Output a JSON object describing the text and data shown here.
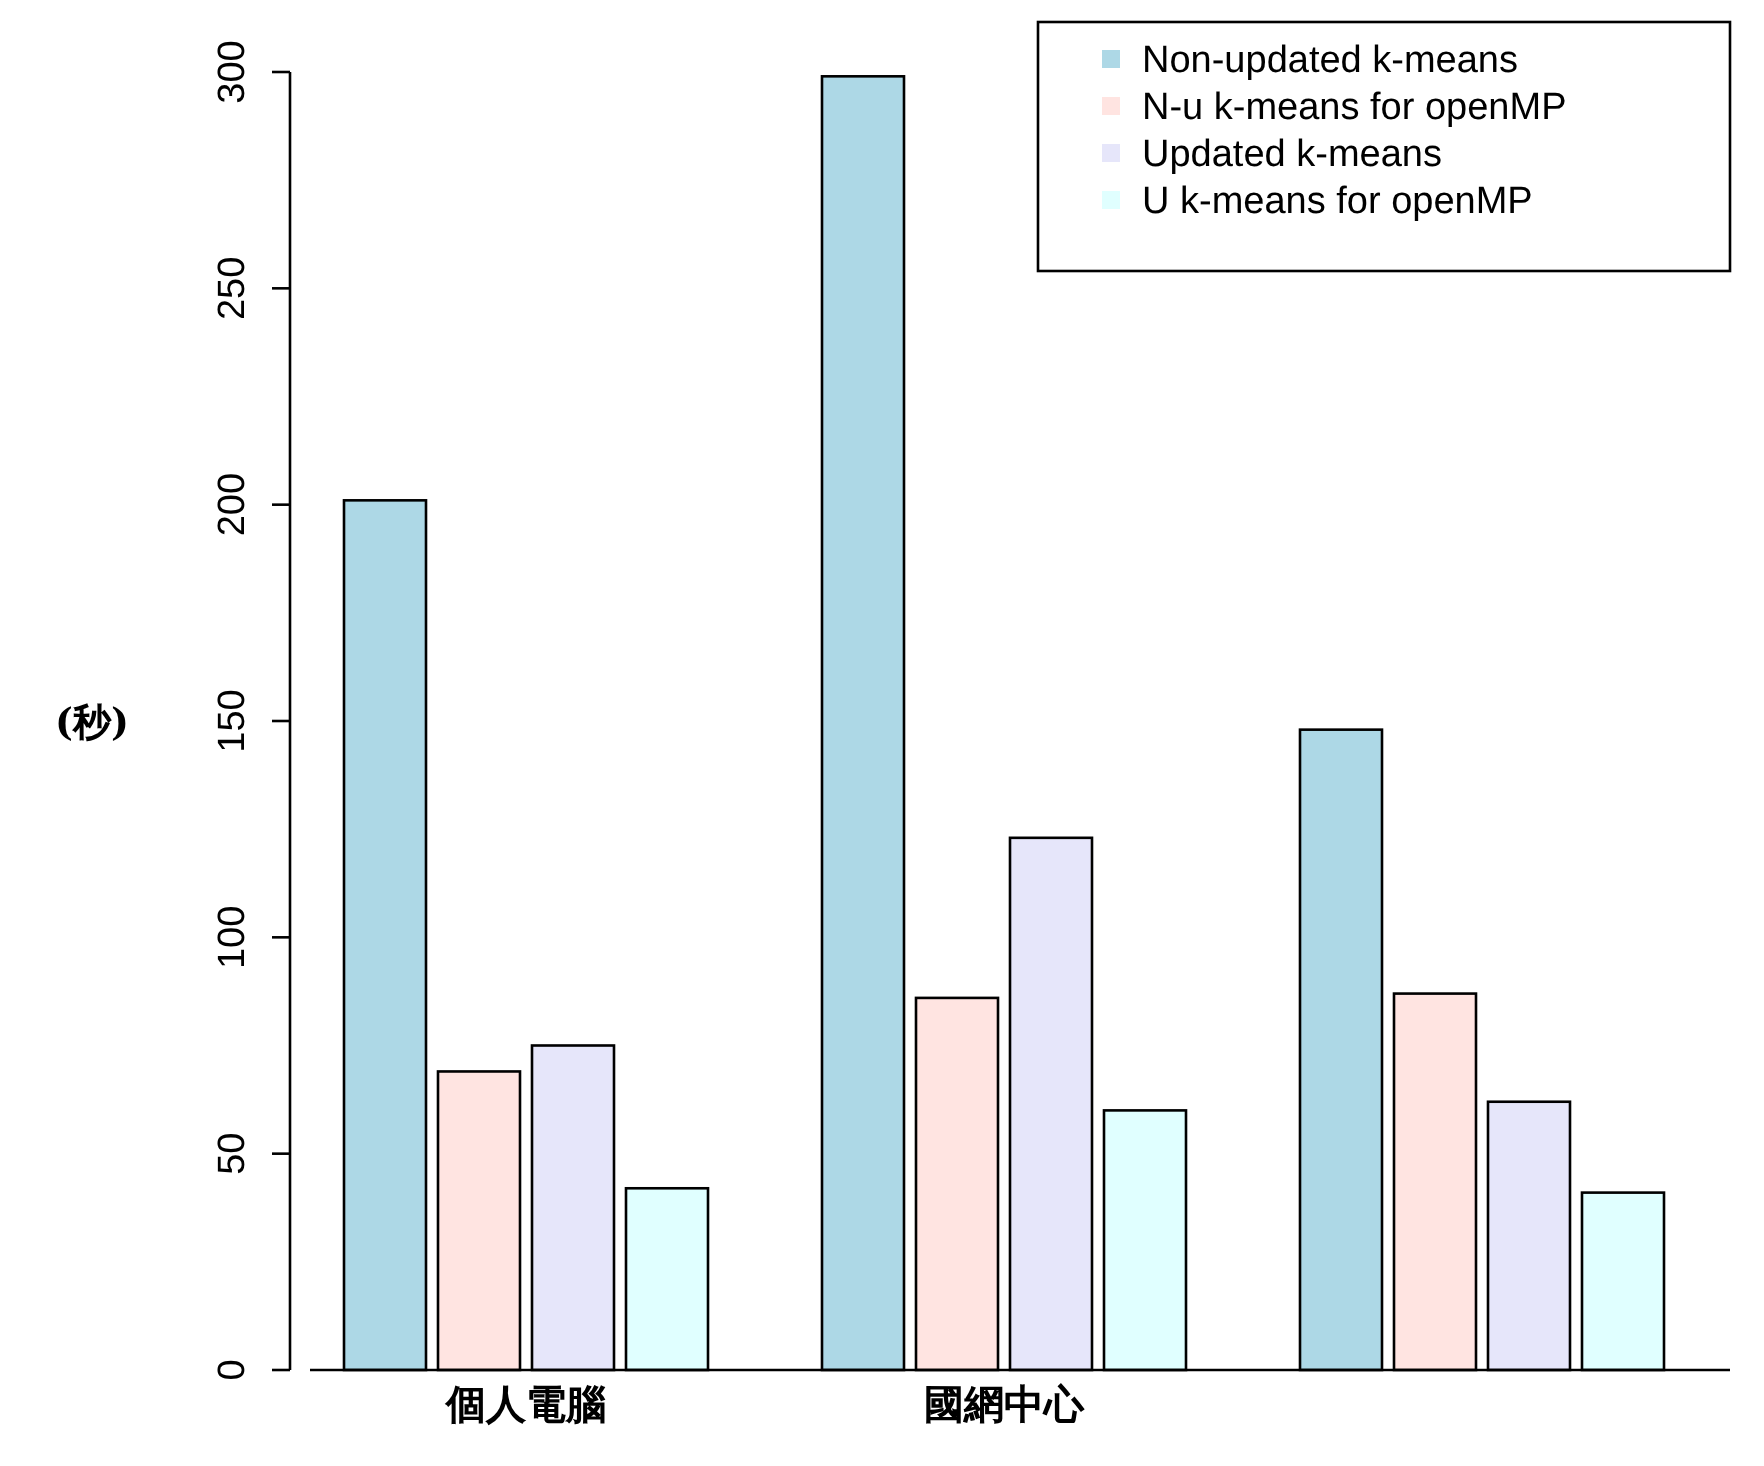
{
  "chart_data": {
    "type": "bar",
    "ylabel": "(秒)",
    "categories": [
      "個人電腦",
      "國網中心",
      null
    ],
    "series": [
      {
        "name": "Non-updated k-means",
        "color": "#add8e6",
        "values": [
          201,
          299,
          148
        ]
      },
      {
        "name": "N-u k-means for openMP",
        "color": "#ffe4e1",
        "values": [
          69,
          86,
          87
        ]
      },
      {
        "name": "Updated k-means",
        "color": "#e6e6fa",
        "values": [
          75,
          123,
          62
        ]
      },
      {
        "name": "U k-means for openMP",
        "color": "#e0ffff",
        "values": [
          42,
          60,
          41
        ]
      }
    ],
    "ylim": [
      0,
      300
    ],
    "yticks": [
      0,
      50,
      100,
      150,
      200,
      250,
      300
    ],
    "legend": "top right"
  }
}
